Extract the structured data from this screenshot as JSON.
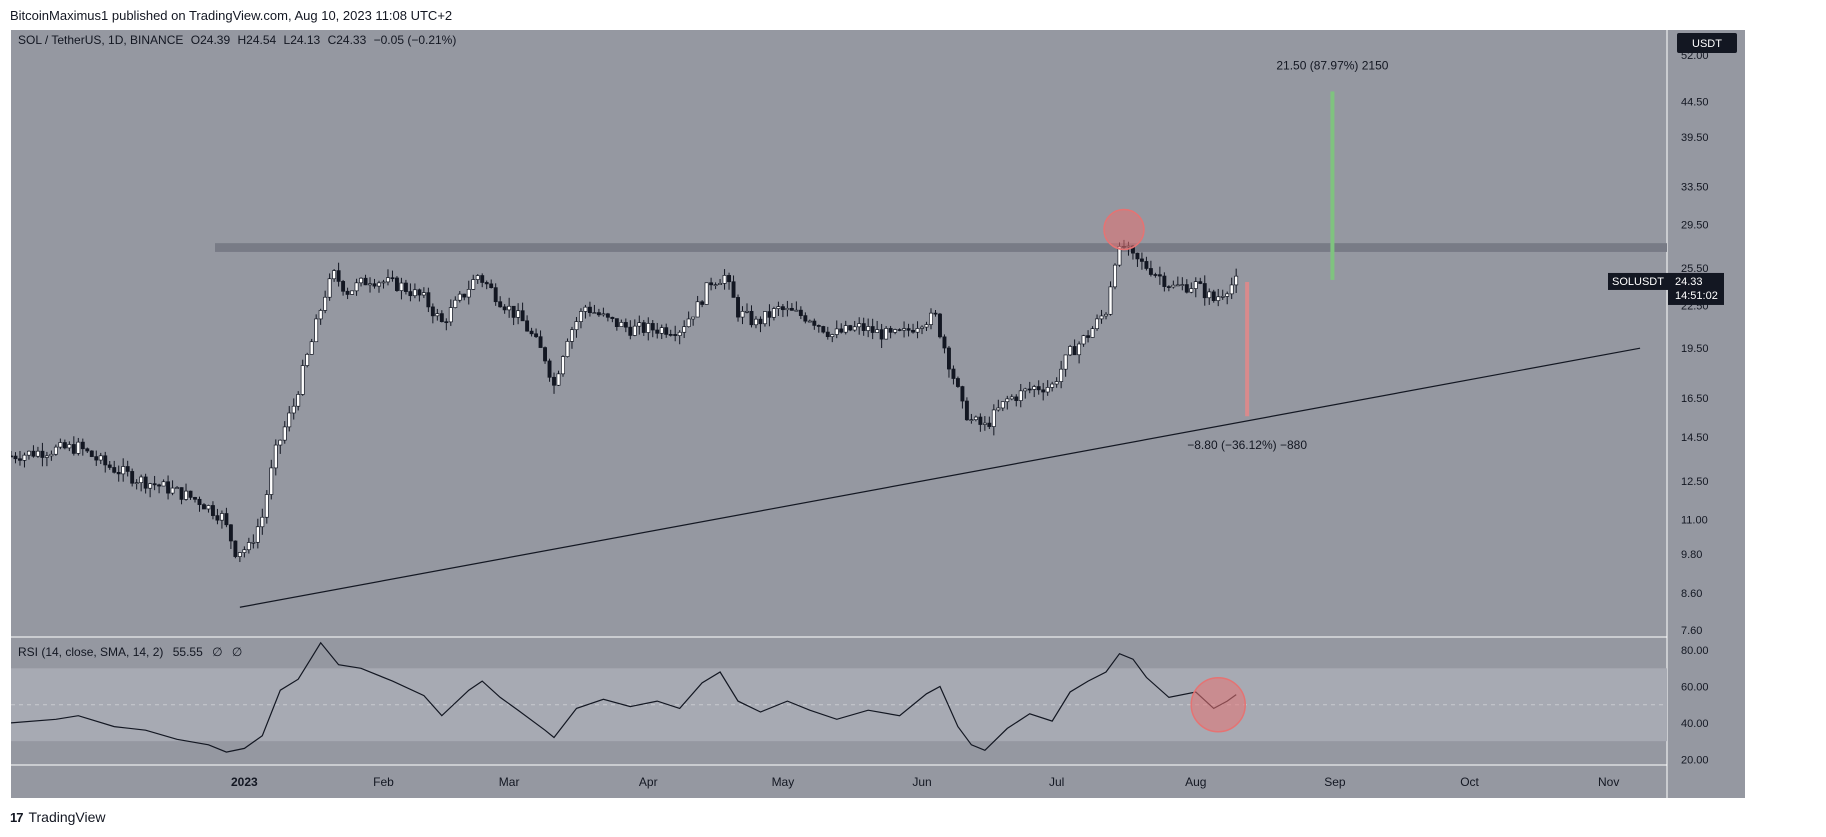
{
  "header": {
    "published": "BitcoinMaximus1 published on TradingView.com, Aug 10, 2023 11:08 UTC+2"
  },
  "footer": {
    "brand": "TradingView",
    "logo_text": "17"
  },
  "legend": {
    "symbol": "SOL / TetherUS, 1D, BINANCE",
    "o_label": "O",
    "o_value": "24.39",
    "h_label": "H",
    "h_value": "24.54",
    "l_label": "L",
    "l_value": "24.13",
    "c_label": "C",
    "c_value": "24.33",
    "change": "−0.05 (−0.21%)"
  },
  "currency_badge": "USDT",
  "price_badge": {
    "symbol": "SOLUSDT",
    "price": "24.33",
    "countdown": "14:51:02"
  },
  "rsi_legend": {
    "label": "RSI (14, close, SMA, 14, 2)",
    "value": "55.55",
    "extra1": "∅",
    "extra2": "∅"
  },
  "annotations": {
    "up_measure": "21.50 (87.97%) 2150",
    "down_measure": "−8.80 (−36.12%) −880"
  },
  "colors": {
    "pane_bg": "#9598a1",
    "candle": "#131722",
    "resistance": "#787b86",
    "up_bar": "#7fc37f",
    "down_bar": "#d98a8c",
    "circle": "#e57373"
  },
  "chart_data": [
    {
      "type": "candlestick",
      "scale": "log",
      "ylim": [
        7.6,
        55
      ],
      "y_ticks": [
        "52.00",
        "44.50",
        "39.50",
        "33.50",
        "29.50",
        "25.50",
        "22.50",
        "19.50",
        "16.50",
        "14.50",
        "12.50",
        "11.00",
        "9.80",
        "8.60",
        "7.60"
      ],
      "x_ticks": [
        "2023",
        "Feb",
        "Mar",
        "Apr",
        "May",
        "Jun",
        "Jul",
        "Aug",
        "Sep",
        "Oct",
        "Nov"
      ],
      "close_series": [
        [
          "2022-11-10",
          13.6
        ],
        [
          "2022-11-20",
          13.9
        ],
        [
          "2022-11-25",
          14.0
        ],
        [
          "2022-12-01",
          13.2
        ],
        [
          "2022-12-08",
          12.6
        ],
        [
          "2022-12-15",
          12.2
        ],
        [
          "2022-12-22",
          11.7
        ],
        [
          "2022-12-27",
          11.1
        ],
        [
          "2022-12-30",
          9.9
        ],
        [
          "2023-01-02",
          10.0
        ],
        [
          "2023-01-05",
          11.1
        ],
        [
          "2023-01-08",
          13.8
        ],
        [
          "2023-01-12",
          16.1
        ],
        [
          "2023-01-16",
          19.9
        ],
        [
          "2023-01-19",
          23.4
        ],
        [
          "2023-01-21",
          24.9
        ],
        [
          "2023-01-24",
          23.6
        ],
        [
          "2023-01-29",
          24.6
        ],
        [
          "2023-02-05",
          24.0
        ],
        [
          "2023-02-10",
          23.0
        ],
        [
          "2023-02-14",
          21.2
        ],
        [
          "2023-02-19",
          23.4
        ],
        [
          "2023-02-22",
          24.9
        ],
        [
          "2023-02-27",
          22.9
        ],
        [
          "2023-03-04",
          21.3
        ],
        [
          "2023-03-09",
          18.9
        ],
        [
          "2023-03-11",
          17.2
        ],
        [
          "2023-03-14",
          20.3
        ],
        [
          "2023-03-18",
          22.4
        ],
        [
          "2023-03-23",
          21.4
        ],
        [
          "2023-03-28",
          20.8
        ],
        [
          "2023-04-03",
          20.8
        ],
        [
          "2023-04-08",
          20.8
        ],
        [
          "2023-04-12",
          22.4
        ],
        [
          "2023-04-15",
          24.4
        ],
        [
          "2023-04-18",
          24.8
        ],
        [
          "2023-04-21",
          22.0
        ],
        [
          "2023-04-25",
          21.2
        ],
        [
          "2023-04-30",
          22.2
        ],
        [
          "2023-05-07",
          21.6
        ],
        [
          "2023-05-12",
          20.4
        ],
        [
          "2023-05-18",
          20.9
        ],
        [
          "2023-05-25",
          20.3
        ],
        [
          "2023-05-28",
          20.5
        ],
        [
          "2023-06-01",
          21.4
        ],
        [
          "2023-06-04",
          21.6
        ],
        [
          "2023-06-07",
          18.6
        ],
        [
          "2023-06-10",
          16.0
        ],
        [
          "2023-06-12",
          15.3
        ],
        [
          "2023-06-15",
          15.0
        ],
        [
          "2023-06-20",
          16.4
        ],
        [
          "2023-06-26",
          17.1
        ],
        [
          "2023-06-30",
          17.2
        ],
        [
          "2023-07-04",
          19.2
        ],
        [
          "2023-07-08",
          20.4
        ],
        [
          "2023-07-12",
          22.1
        ],
        [
          "2023-07-14",
          26.3
        ],
        [
          "2023-07-16",
          27.4
        ],
        [
          "2023-07-18",
          26.3
        ],
        [
          "2023-07-22",
          25.4
        ],
        [
          "2023-07-27",
          23.9
        ],
        [
          "2023-08-01",
          24.1
        ],
        [
          "2023-08-05",
          22.9
        ],
        [
          "2023-08-08",
          23.9
        ],
        [
          "2023-08-10",
          24.33
        ]
      ],
      "annotations": {
        "resistance": [
          26.9,
          27.7
        ],
        "ascending_support": [
          [
            "2022-12-31",
            8.2
          ],
          [
            "2023-11-08",
            19.5
          ]
        ],
        "target_up": [
          24.5,
          46.0
        ],
        "target_down": [
          24.33,
          15.53
        ]
      }
    },
    {
      "type": "line",
      "name": "RSI",
      "ylim": [
        18,
        85
      ],
      "y_ticks": [
        "80.00",
        "60.00",
        "40.00",
        "20.00"
      ],
      "bands": [
        30,
        70
      ],
      "series": [
        [
          "2022-11-10",
          40
        ],
        [
          "2022-11-20",
          42
        ],
        [
          "2022-11-25",
          44
        ],
        [
          "2022-12-03",
          38
        ],
        [
          "2022-12-10",
          36
        ],
        [
          "2022-12-17",
          31
        ],
        [
          "2022-12-24",
          28
        ],
        [
          "2022-12-28",
          24
        ],
        [
          "2023-01-01",
          26
        ],
        [
          "2023-01-05",
          33
        ],
        [
          "2023-01-09",
          58
        ],
        [
          "2023-01-13",
          64
        ],
        [
          "2023-01-16",
          76
        ],
        [
          "2023-01-18",
          84
        ],
        [
          "2023-01-22",
          72
        ],
        [
          "2023-01-27",
          70
        ],
        [
          "2023-02-03",
          63
        ],
        [
          "2023-02-10",
          55
        ],
        [
          "2023-02-14",
          44
        ],
        [
          "2023-02-20",
          58
        ],
        [
          "2023-02-23",
          63
        ],
        [
          "2023-02-27",
          54
        ],
        [
          "2023-03-03",
          47
        ],
        [
          "2023-03-09",
          36
        ],
        [
          "2023-03-11",
          32
        ],
        [
          "2023-03-16",
          48
        ],
        [
          "2023-03-22",
          53
        ],
        [
          "2023-03-28",
          49
        ],
        [
          "2023-04-03",
          52
        ],
        [
          "2023-04-08",
          48
        ],
        [
          "2023-04-13",
          62
        ],
        [
          "2023-04-17",
          68
        ],
        [
          "2023-04-21",
          52
        ],
        [
          "2023-04-26",
          46
        ],
        [
          "2023-05-02",
          52
        ],
        [
          "2023-05-07",
          47
        ],
        [
          "2023-05-13",
          42
        ],
        [
          "2023-05-20",
          47
        ],
        [
          "2023-05-27",
          44
        ],
        [
          "2023-06-02",
          56
        ],
        [
          "2023-06-05",
          60
        ],
        [
          "2023-06-09",
          38
        ],
        [
          "2023-06-12",
          28
        ],
        [
          "2023-06-15",
          25
        ],
        [
          "2023-06-20",
          37
        ],
        [
          "2023-06-25",
          45
        ],
        [
          "2023-06-30",
          41
        ],
        [
          "2023-07-04",
          57
        ],
        [
          "2023-07-08",
          63
        ],
        [
          "2023-07-12",
          68
        ],
        [
          "2023-07-15",
          78
        ],
        [
          "2023-07-18",
          75
        ],
        [
          "2023-07-21",
          65
        ],
        [
          "2023-07-26",
          54
        ],
        [
          "2023-08-01",
          57
        ],
        [
          "2023-08-05",
          48
        ],
        [
          "2023-08-08",
          52
        ],
        [
          "2023-08-10",
          55.55
        ]
      ]
    }
  ]
}
